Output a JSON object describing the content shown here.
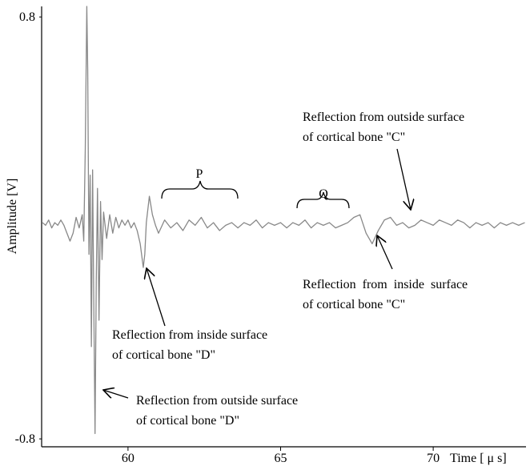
{
  "chart_data": {
    "type": "line",
    "x_label": "Time [ μ s]",
    "y_label": "Amplitude [V]",
    "x": [
      57.2,
      57.3,
      57.4,
      57.5,
      57.6,
      57.7,
      57.8,
      57.9,
      58.0,
      58.1,
      58.2,
      58.3,
      58.4,
      58.5,
      58.55,
      58.6,
      58.65,
      58.68,
      58.72,
      58.76,
      58.8,
      58.84,
      58.88,
      58.92,
      58.96,
      59.0,
      59.05,
      59.1,
      59.15,
      59.2,
      59.3,
      59.4,
      59.5,
      59.6,
      59.7,
      59.8,
      59.9,
      60.0,
      60.1,
      60.2,
      60.3,
      60.4,
      60.5,
      60.55,
      60.6,
      60.7,
      60.8,
      60.9,
      61.0,
      61.2,
      61.4,
      61.6,
      61.8,
      62.0,
      62.2,
      62.4,
      62.6,
      62.8,
      63.0,
      63.2,
      63.4,
      63.6,
      63.8,
      64.0,
      64.2,
      64.4,
      64.6,
      64.8,
      65.0,
      65.2,
      65.4,
      65.6,
      65.8,
      66.0,
      66.2,
      66.4,
      66.6,
      66.8,
      67.0,
      67.2,
      67.4,
      67.6,
      67.8,
      68.0,
      68.2,
      68.4,
      68.6,
      68.8,
      69.0,
      69.2,
      69.4,
      69.6,
      69.8,
      70.0,
      70.2,
      70.4,
      70.6,
      70.8,
      71.0,
      71.2,
      71.4,
      71.6,
      71.8,
      72.0,
      72.2,
      72.4,
      72.6,
      72.8,
      73.0
    ],
    "values": [
      0.02,
      0.01,
      0.03,
      0,
      0.02,
      0.01,
      0.03,
      0.01,
      -0.02,
      -0.05,
      -0.02,
      0.04,
      0,
      0.05,
      -0.05,
      0.3,
      0.84,
      0.6,
      -0.1,
      0.2,
      -0.45,
      0.22,
      -0.3,
      -0.78,
      -0.2,
      0.15,
      -0.35,
      0.1,
      -0.12,
      0.06,
      -0.04,
      0.05,
      -0.02,
      0.04,
      0,
      0.03,
      0.01,
      0.03,
      0,
      0.02,
      -0.01,
      -0.06,
      -0.15,
      -0.1,
      0.02,
      0.12,
      0.05,
      0.01,
      -0.02,
      0.03,
      0,
      0.02,
      -0.01,
      0.03,
      0.01,
      0.04,
      0,
      0.02,
      -0.01,
      0.01,
      0.02,
      0,
      0.02,
      0.01,
      0.03,
      0,
      0.02,
      0.01,
      0.02,
      0,
      0.02,
      0.01,
      0.03,
      0,
      0.02,
      0.01,
      0.02,
      0,
      0.01,
      0.02,
      0.04,
      0.05,
      -0.02,
      -0.06,
      -0.01,
      0.03,
      0.04,
      0.01,
      0.02,
      0,
      0.01,
      0.03,
      0.02,
      0.01,
      0.03,
      0.02,
      0.01,
      0.03,
      0.02,
      0,
      0.02,
      0.01,
      0.02,
      0,
      0.02,
      0.01,
      0.02,
      0.01,
      0.02
    ],
    "color": "#888888",
    "xlim": [
      57.17,
      73.04
    ],
    "xticks": [
      60,
      65,
      70
    ],
    "ylim": [
      -0.83,
      0.84
    ],
    "yticks": [
      -0.8,
      0.8
    ],
    "annotations": [
      {
        "text": "P"
      },
      {
        "text": "Q"
      },
      {
        "lines": [
          "Reflection from outside surface",
          "of cortical bone \"C\""
        ]
      },
      {
        "lines": [
          "Reflection  from  inside  surface",
          "of cortical bone \"C\""
        ]
      },
      {
        "lines": [
          "Reflection from inside surface",
          "of cortical bone \"D\""
        ]
      },
      {
        "lines": [
          "Reflection from outside surface",
          "of cortical bone \"D\""
        ]
      }
    ]
  }
}
